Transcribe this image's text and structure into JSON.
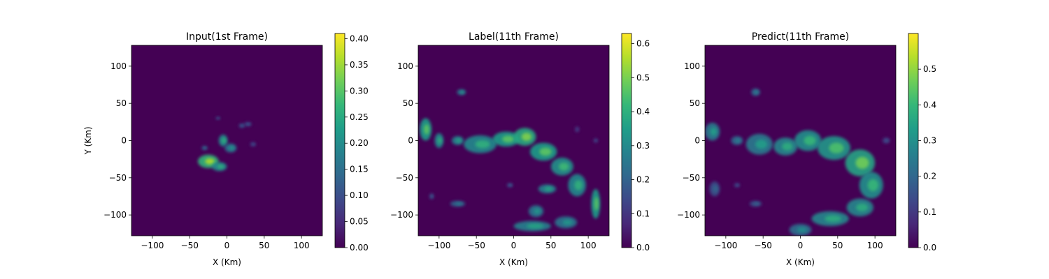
{
  "colors": {
    "background": "#440154",
    "colormap": [
      "#440154",
      "#482878",
      "#3e4989",
      "#31688e",
      "#26828e",
      "#1f9e89",
      "#35b779",
      "#6ece58",
      "#b5de2b",
      "#fde725"
    ]
  },
  "chart_data": [
    {
      "type": "heatmap",
      "title": "Input(1st Frame)",
      "xlabel": "X (Km)",
      "ylabel": "Y (Km)",
      "xlim": [
        -128,
        128
      ],
      "ylim": [
        -128,
        128
      ],
      "xticks": [
        -100,
        -50,
        0,
        50,
        100
      ],
      "yticks": [
        -100,
        -50,
        0,
        50,
        100
      ],
      "xtick_labels": [
        "−100",
        "−50",
        "0",
        "50",
        "100"
      ],
      "ytick_labels": [
        "−100",
        "−50",
        "0",
        "50",
        "100"
      ],
      "colorbar": {
        "range": [
          0,
          0.41
        ],
        "ticks": [
          0.0,
          0.05,
          0.1,
          0.15,
          0.2,
          0.25,
          0.3,
          0.35,
          0.4
        ],
        "tick_labels": [
          "0.00",
          "0.05",
          "0.10",
          "0.15",
          "0.20",
          "0.25",
          "0.30",
          "0.35",
          "0.40"
        ]
      },
      "blobs": [
        {
          "x": -25,
          "y": -28,
          "rx": 14,
          "ry": 9,
          "v": 0.27
        },
        {
          "x": -10,
          "y": -35,
          "rx": 10,
          "ry": 6,
          "v": 0.2
        },
        {
          "x": -5,
          "y": 0,
          "rx": 6,
          "ry": 8,
          "v": 0.2
        },
        {
          "x": 5,
          "y": -10,
          "rx": 8,
          "ry": 6,
          "v": 0.16
        },
        {
          "x": 20,
          "y": 20,
          "rx": 4,
          "ry": 3,
          "v": 0.1
        },
        {
          "x": 28,
          "y": 22,
          "rx": 5,
          "ry": 3,
          "v": 0.09
        },
        {
          "x": 35,
          "y": -5,
          "rx": 4,
          "ry": 3,
          "v": 0.08
        },
        {
          "x": -12,
          "y": 30,
          "rx": 3,
          "ry": 2,
          "v": 0.1
        },
        {
          "x": -30,
          "y": -10,
          "rx": 4,
          "ry": 3,
          "v": 0.12
        }
      ]
    },
    {
      "type": "heatmap",
      "title": "Label(11th Frame)",
      "xlabel": "X (Km)",
      "ylabel": "",
      "xlim": [
        -128,
        128
      ],
      "ylim": [
        -128,
        128
      ],
      "xticks": [
        -100,
        -50,
        0,
        50,
        100
      ],
      "yticks": [
        -100,
        -50,
        0,
        50,
        100
      ],
      "xtick_labels": [
        "−100",
        "−50",
        "0",
        "50",
        "100"
      ],
      "ytick_labels": [
        "−100",
        "−50",
        "0",
        "50",
        "100"
      ],
      "colorbar": {
        "range": [
          0,
          0.63
        ],
        "ticks": [
          0.0,
          0.1,
          0.2,
          0.3,
          0.4,
          0.5,
          0.6
        ],
        "tick_labels": [
          "0.0",
          "0.1",
          "0.2",
          "0.3",
          "0.4",
          "0.5",
          "0.6"
        ]
      },
      "blobs": [
        {
          "x": -118,
          "y": 15,
          "rx": 8,
          "ry": 15,
          "v": 0.35
        },
        {
          "x": -100,
          "y": 0,
          "rx": 6,
          "ry": 10,
          "v": 0.3
        },
        {
          "x": -75,
          "y": 0,
          "rx": 8,
          "ry": 6,
          "v": 0.28
        },
        {
          "x": -45,
          "y": -5,
          "rx": 22,
          "ry": 12,
          "v": 0.3
        },
        {
          "x": -10,
          "y": 2,
          "rx": 18,
          "ry": 10,
          "v": 0.35
        },
        {
          "x": 15,
          "y": 5,
          "rx": 15,
          "ry": 12,
          "v": 0.38
        },
        {
          "x": 40,
          "y": -15,
          "rx": 18,
          "ry": 12,
          "v": 0.35
        },
        {
          "x": 65,
          "y": -35,
          "rx": 15,
          "ry": 12,
          "v": 0.32
        },
        {
          "x": 85,
          "y": -60,
          "rx": 12,
          "ry": 15,
          "v": 0.3
        },
        {
          "x": 45,
          "y": -65,
          "rx": 12,
          "ry": 6,
          "v": 0.28
        },
        {
          "x": 30,
          "y": -95,
          "rx": 10,
          "ry": 8,
          "v": 0.25
        },
        {
          "x": 25,
          "y": -115,
          "rx": 25,
          "ry": 7,
          "v": 0.28
        },
        {
          "x": 70,
          "y": -110,
          "rx": 15,
          "ry": 8,
          "v": 0.25
        },
        {
          "x": 110,
          "y": -85,
          "rx": 6,
          "ry": 20,
          "v": 0.35
        },
        {
          "x": -70,
          "y": 65,
          "rx": 6,
          "ry": 4,
          "v": 0.25
        },
        {
          "x": -75,
          "y": -85,
          "rx": 10,
          "ry": 4,
          "v": 0.2
        },
        {
          "x": -110,
          "y": -75,
          "rx": 3,
          "ry": 4,
          "v": 0.15
        },
        {
          "x": 85,
          "y": 15,
          "rx": 3,
          "ry": 4,
          "v": 0.1
        },
        {
          "x": 110,
          "y": 0,
          "rx": 3,
          "ry": 3,
          "v": 0.12
        },
        {
          "x": -5,
          "y": -60,
          "rx": 4,
          "ry": 3,
          "v": 0.15
        }
      ]
    },
    {
      "type": "heatmap",
      "title": "Predict(11th Frame)",
      "xlabel": "X (Km)",
      "ylabel": "",
      "xlim": [
        -128,
        128
      ],
      "ylim": [
        -128,
        128
      ],
      "xticks": [
        -100,
        -50,
        0,
        50,
        100
      ],
      "yticks": [
        -100,
        -50,
        0,
        50,
        100
      ],
      "xtick_labels": [
        "−100",
        "−50",
        "0",
        "50",
        "100"
      ],
      "ytick_labels": [
        "−100",
        "−50",
        "0",
        "50",
        "100"
      ],
      "colorbar": {
        "range": [
          0,
          0.6
        ],
        "ticks": [
          0.0,
          0.1,
          0.2,
          0.3,
          0.4,
          0.5
        ],
        "tick_labels": [
          "0.0",
          "0.1",
          "0.2",
          "0.3",
          "0.4",
          "0.5"
        ]
      },
      "blobs": [
        {
          "x": -118,
          "y": 12,
          "rx": 10,
          "ry": 12,
          "v": 0.25
        },
        {
          "x": -85,
          "y": 0,
          "rx": 8,
          "ry": 6,
          "v": 0.2
        },
        {
          "x": -55,
          "y": -5,
          "rx": 18,
          "ry": 14,
          "v": 0.25
        },
        {
          "x": -20,
          "y": -8,
          "rx": 16,
          "ry": 12,
          "v": 0.28
        },
        {
          "x": 10,
          "y": 0,
          "rx": 18,
          "ry": 14,
          "v": 0.3
        },
        {
          "x": 45,
          "y": -10,
          "rx": 22,
          "ry": 16,
          "v": 0.32
        },
        {
          "x": 80,
          "y": -30,
          "rx": 20,
          "ry": 18,
          "v": 0.35
        },
        {
          "x": 95,
          "y": -60,
          "rx": 16,
          "ry": 18,
          "v": 0.3
        },
        {
          "x": 80,
          "y": -90,
          "rx": 18,
          "ry": 12,
          "v": 0.28
        },
        {
          "x": 40,
          "y": -105,
          "rx": 25,
          "ry": 10,
          "v": 0.28
        },
        {
          "x": 0,
          "y": -120,
          "rx": 15,
          "ry": 8,
          "v": 0.22
        },
        {
          "x": -60,
          "y": 65,
          "rx": 6,
          "ry": 5,
          "v": 0.2
        },
        {
          "x": -115,
          "y": -65,
          "rx": 7,
          "ry": 10,
          "v": 0.15
        },
        {
          "x": -60,
          "y": -85,
          "rx": 8,
          "ry": 4,
          "v": 0.15
        },
        {
          "x": -85,
          "y": -60,
          "rx": 4,
          "ry": 3,
          "v": 0.12
        },
        {
          "x": 115,
          "y": 0,
          "rx": 5,
          "ry": 4,
          "v": 0.12
        }
      ]
    }
  ]
}
